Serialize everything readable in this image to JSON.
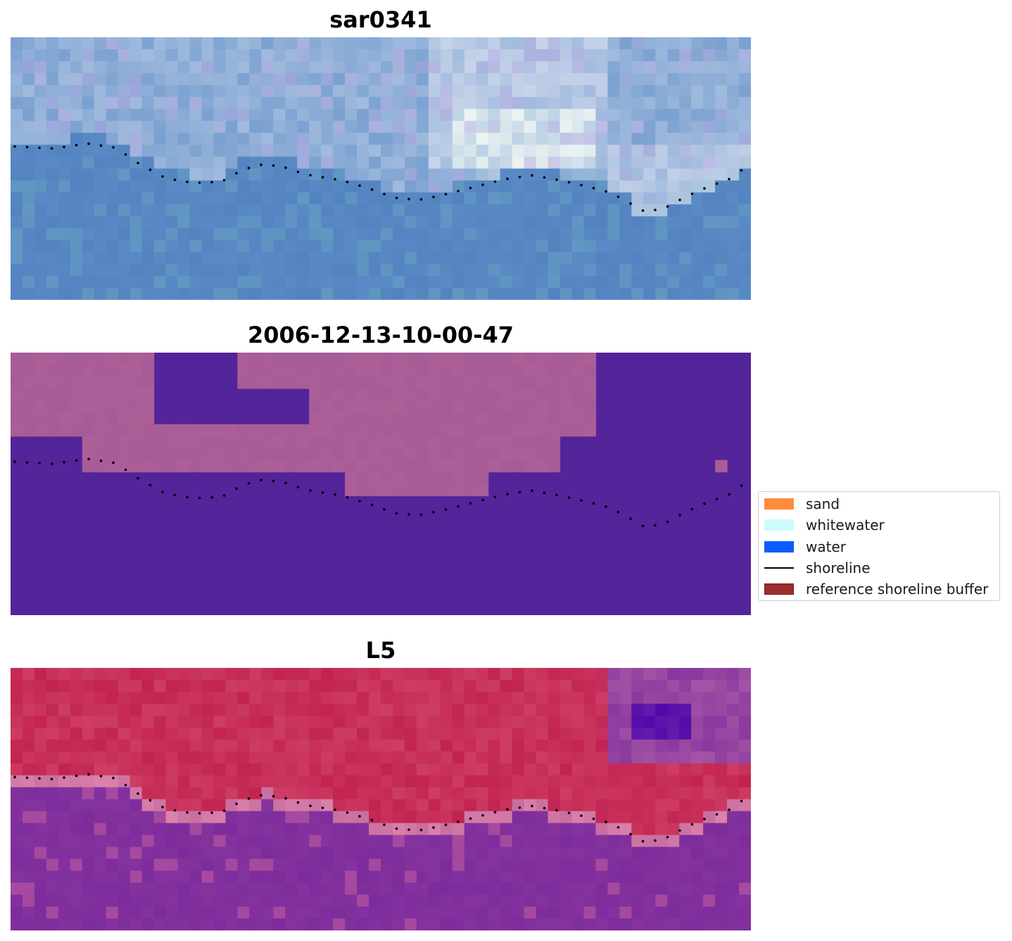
{
  "panels": [
    {
      "title": "sar0341",
      "kind": "rgb"
    },
    {
      "title": "2006-12-13-10-00-47",
      "kind": "classified"
    },
    {
      "title": "L5",
      "kind": "index"
    }
  ],
  "legend": {
    "items": [
      {
        "label": "sand",
        "type": "patch",
        "color": "#ff8c3a"
      },
      {
        "label": "whitewater",
        "type": "patch",
        "color": "#ccfcfc"
      },
      {
        "label": "water",
        "type": "patch",
        "color": "#0a5cff"
      },
      {
        "label": "shoreline",
        "type": "line",
        "color": "#000000"
      },
      {
        "label": "reference shoreline buffer",
        "type": "patch",
        "color": "#9b2d2d",
        "edge": "#7a1a1a"
      }
    ]
  },
  "colors": {
    "rgb_base": "#5f8fc8",
    "classified_water": "#53249a",
    "classified_land": "#a45a98",
    "index_water": "#7c2a9c",
    "index_land": "#c01e4c",
    "shoreline_dots": "#000000"
  }
}
